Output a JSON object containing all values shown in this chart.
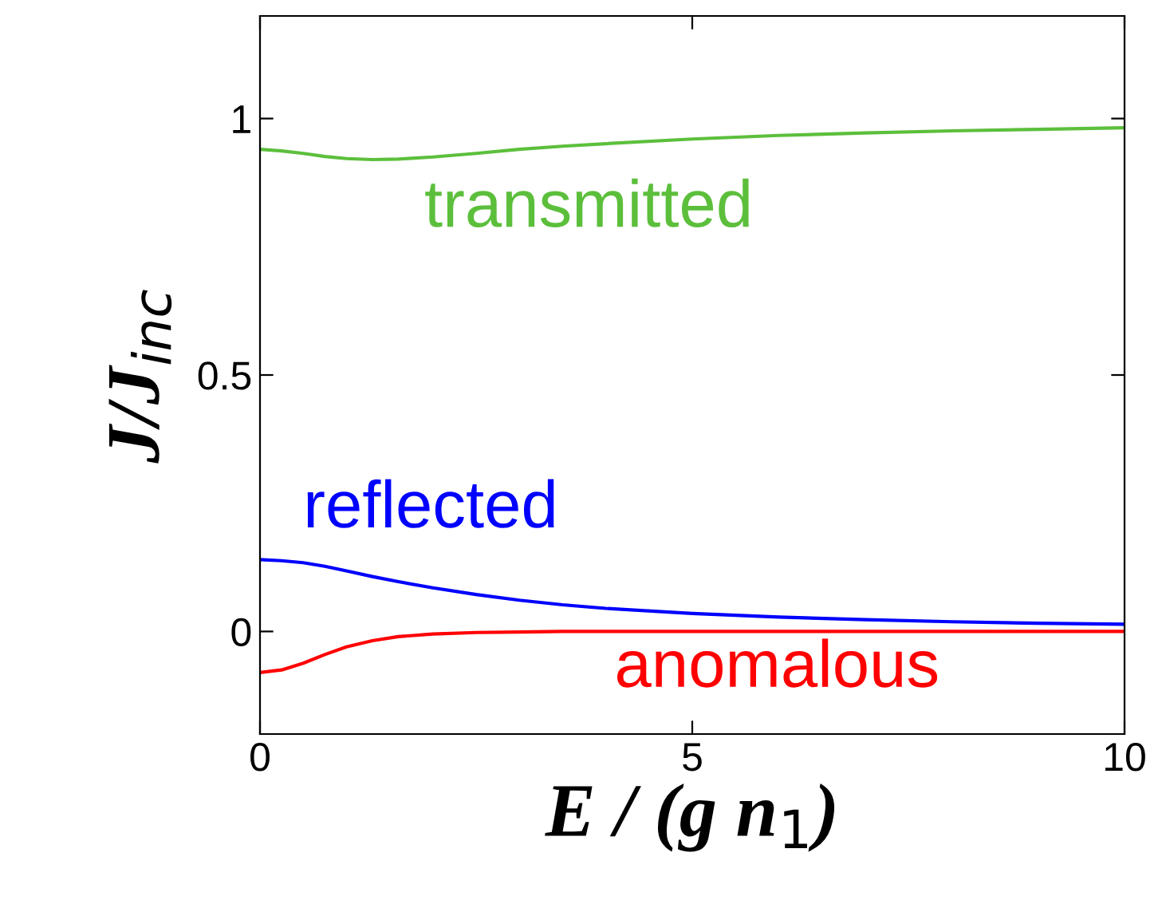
{
  "chart_data": {
    "type": "line",
    "xlabel": "E / (g n$_{1}$)",
    "ylabel": "J/J$_{inc}$",
    "xlim": [
      0,
      10
    ],
    "ylim": [
      -0.2,
      1.2
    ],
    "xticks": [
      0,
      5,
      10
    ],
    "yticks": [
      0,
      0.5,
      1
    ],
    "grid": false,
    "legend": false,
    "marker": "none",
    "line_style": "solid",
    "x": [
      0,
      0.25,
      0.5,
      0.75,
      1,
      1.3,
      1.6,
      2,
      2.5,
      3,
      3.5,
      4,
      5,
      6,
      7,
      8,
      9,
      10
    ],
    "series": [
      {
        "name": "transmitted",
        "color": "#5cbf3c",
        "values": [
          0.94,
          0.937,
          0.932,
          0.926,
          0.922,
          0.92,
          0.921,
          0.925,
          0.932,
          0.94,
          0.946,
          0.951,
          0.96,
          0.967,
          0.972,
          0.976,
          0.979,
          0.982
        ]
      },
      {
        "name": "reflected",
        "color": "#0000ff",
        "values": [
          0.14,
          0.138,
          0.134,
          0.127,
          0.118,
          0.107,
          0.097,
          0.085,
          0.072,
          0.061,
          0.052,
          0.045,
          0.035,
          0.028,
          0.023,
          0.019,
          0.016,
          0.014
        ]
      },
      {
        "name": "anomalous",
        "color": "#ff0000",
        "values": [
          -0.08,
          -0.075,
          -0.062,
          -0.045,
          -0.03,
          -0.018,
          -0.01,
          -0.005,
          -0.002,
          -0.001,
          0,
          0,
          0,
          0,
          0,
          0,
          0,
          0
        ]
      }
    ]
  }
}
